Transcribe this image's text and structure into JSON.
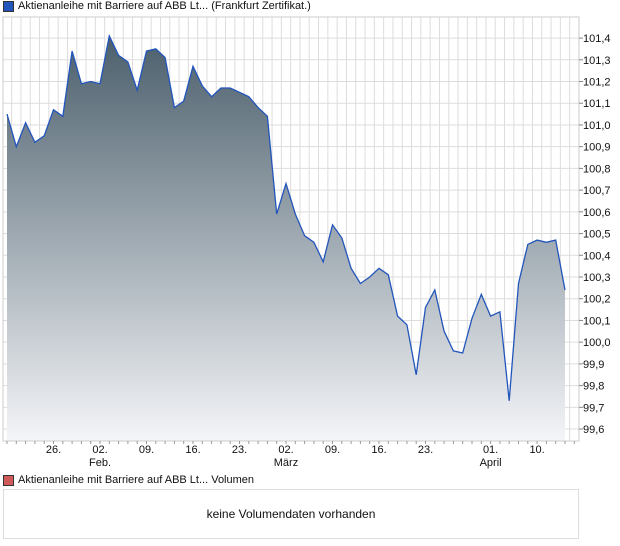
{
  "colors": {
    "line": "#2255bb",
    "fill_top": "#4b5f6c",
    "fill_bottom": "#f4f5f8",
    "legend_price": "#2255bb",
    "legend_volume": "#d05a5a",
    "grid": "#dddddd"
  },
  "chart_data": {
    "type": "area",
    "title": "Aktienanleihe mit Barriere auf ABB Lt... (Frankfurt Zertifikat.)",
    "ylim": [
      99.545,
      101.497
    ],
    "yticks": [
      "101,4",
      "101,3",
      "101,2",
      "101,1",
      "101,0",
      "100,9",
      "100,8",
      "100,7",
      "100,6",
      "100,5",
      "100,4",
      "100,3",
      "100,2",
      "100,1",
      "100,0",
      "99,9",
      "99,8",
      "99,7",
      "99,6"
    ],
    "ytick_values": [
      101.4,
      101.3,
      101.2,
      101.1,
      101.0,
      100.9,
      100.8,
      100.7,
      100.6,
      100.5,
      100.4,
      100.3,
      100.2,
      100.1,
      100.0,
      99.9,
      99.8,
      99.7,
      99.6
    ],
    "xticks": [
      {
        "label": "26.",
        "day": 5
      },
      {
        "label": "02.",
        "sub": "Feb.",
        "day": 10
      },
      {
        "label": "09.",
        "day": 15
      },
      {
        "label": "16.",
        "day": 20
      },
      {
        "label": "23.",
        "day": 25
      },
      {
        "label": "02.",
        "sub": "März",
        "day": 30
      },
      {
        "label": "09.",
        "day": 35
      },
      {
        "label": "16.",
        "day": 40
      },
      {
        "label": "23.",
        "day": 45
      },
      {
        "label": "01.",
        "sub": "April",
        "day": 52
      },
      {
        "label": "10.",
        "day": 57
      }
    ],
    "values": [
      101.05,
      100.9,
      101.01,
      100.92,
      100.95,
      101.07,
      101.04,
      101.34,
      101.19,
      101.2,
      101.19,
      101.41,
      101.32,
      101.29,
      101.16,
      101.34,
      101.35,
      101.31,
      101.08,
      101.11,
      101.27,
      101.18,
      101.13,
      101.17,
      101.17,
      101.15,
      101.13,
      101.08,
      101.04,
      100.59,
      100.73,
      100.59,
      100.49,
      100.46,
      100.37,
      100.54,
      100.48,
      100.34,
      100.27,
      100.3,
      100.34,
      100.31,
      100.12,
      100.08,
      99.85,
      100.16,
      100.24,
      100.05,
      99.96,
      99.95,
      100.11,
      100.22,
      100.12,
      100.14,
      99.73,
      100.27,
      100.45,
      100.47,
      100.46,
      100.47,
      100.24
    ],
    "grid": true
  },
  "volume": {
    "title": "Aktienanleihe mit Barriere auf ABB Lt... Volumen",
    "empty_text": "keine Volumendaten vorhanden"
  }
}
